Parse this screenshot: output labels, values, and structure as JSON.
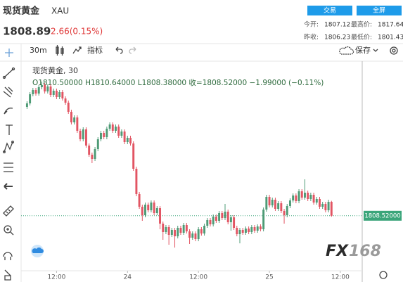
{
  "header": {
    "name": "现货黄金",
    "symbol": "XAU",
    "price": "1808.89",
    "change": "2.66(0.15%)",
    "buttons": [
      "交易",
      "全屏"
    ],
    "stats": [
      [
        "今开:",
        "1807.12",
        "最高价:",
        "1817.64"
      ],
      [
        "昨收:",
        "1806.23",
        "最低价:",
        "1801.43"
      ]
    ]
  },
  "toolbar": {
    "interval": "30m",
    "indicators": "指标",
    "save": "保存"
  },
  "chart_data": {
    "type": "candlestick",
    "title": "现货黄金, 30",
    "ohlc_text": "O1810.50000 H1810.64000 L1808.38000 收=1808.52000 −1.99000 (−0.11%)",
    "up_color": "#4e9b76",
    "down_color": "#e25563",
    "grid": false,
    "x": [
      7,
      7.5,
      8,
      8.5,
      9,
      9.5,
      10,
      10.5,
      11,
      11.5,
      12,
      12.5,
      13,
      13.5,
      14,
      14.5,
      15,
      15.5,
      16,
      16.5,
      17,
      17.5,
      18,
      18.5,
      19,
      19.5,
      20,
      20.5,
      21,
      21.5,
      22,
      22.5,
      23,
      23.5,
      24,
      24.5,
      25,
      25.5,
      26,
      26.5,
      27,
      27.5,
      28,
      28.5,
      29,
      29.5,
      30,
      30.5,
      31,
      31.5,
      32,
      32.5,
      33,
      33.5,
      34,
      34.5,
      35,
      35.5,
      36,
      36.5,
      37,
      37.5,
      38,
      38.5,
      39,
      39.5,
      40,
      40.5,
      41,
      41.5,
      42,
      42.5,
      43,
      43.5,
      44,
      44.5,
      45,
      45.5,
      46,
      46.5,
      47,
      47.5,
      48,
      48.5,
      49,
      49.5,
      50,
      50.5,
      51,
      51.5,
      52,
      52.5,
      53,
      53.5,
      54,
      54.5,
      55,
      55.5,
      56,
      56.5,
      57,
      57.5,
      58,
      58.5
    ],
    "open": [
      1824.0,
      1824.5,
      1825.8,
      1826.4,
      1825.9,
      1826.8,
      1827.1,
      1826.2,
      1826.9,
      1825.7,
      1826.3,
      1825.4,
      1826.1,
      1825.2,
      1824.6,
      1823.3,
      1821.8,
      1822.5,
      1820.6,
      1819.4,
      1820.8,
      1818.5,
      1817.2,
      1816.6,
      1818.0,
      1819.4,
      1820.3,
      1819.7,
      1820.9,
      1821.5,
      1820.6,
      1821.2,
      1819.9,
      1820.5,
      1819.0,
      1819.6,
      1818.8,
      1815.2,
      1811.6,
      1809.8,
      1808.6,
      1810.1,
      1809.3,
      1810.4,
      1808.9,
      1809.6,
      1807.4,
      1806.2,
      1806.9,
      1805.8,
      1806.5,
      1805.6,
      1806.8,
      1806.1,
      1807.2,
      1806.3,
      1805.4,
      1806.0,
      1805.2,
      1806.6,
      1806.0,
      1807.1,
      1807.9,
      1807.3,
      1808.4,
      1807.8,
      1808.9,
      1808.2,
      1809.1,
      1807.6,
      1808.3,
      1806.8,
      1805.9,
      1806.5,
      1806.1,
      1806.7,
      1806.2,
      1806.9,
      1806.4,
      1807.0,
      1806.6,
      1809.4,
      1811.2,
      1810.0,
      1810.8,
      1809.5,
      1810.3,
      1809.2,
      1808.6,
      1809.9,
      1810.7,
      1811.4,
      1810.6,
      1812.0,
      1811.1,
      1811.8,
      1810.9,
      1811.5,
      1810.4,
      1810.9,
      1809.8,
      1810.2,
      1809.3,
      1810.5
    ],
    "high": [
      1824.8,
      1826.1,
      1826.7,
      1826.7,
      1827.1,
      1827.6,
      1827.4,
      1827.2,
      1827.2,
      1826.6,
      1826.6,
      1826.4,
      1826.4,
      1825.5,
      1824.9,
      1823.6,
      1822.8,
      1822.8,
      1820.9,
      1821.1,
      1821.1,
      1818.8,
      1817.5,
      1818.3,
      1819.7,
      1820.6,
      1820.6,
      1821.2,
      1821.8,
      1821.8,
      1821.5,
      1821.5,
      1820.8,
      1820.8,
      1819.9,
      1819.9,
      1819.1,
      1815.5,
      1811.9,
      1810.1,
      1810.4,
      1810.4,
      1810.7,
      1810.7,
      1809.9,
      1809.9,
      1807.7,
      1807.2,
      1807.2,
      1806.8,
      1806.8,
      1807.1,
      1807.1,
      1807.5,
      1807.5,
      1806.6,
      1806.3,
      1806.3,
      1806.9,
      1806.9,
      1807.4,
      1808.2,
      1808.2,
      1808.7,
      1808.7,
      1809.2,
      1809.2,
      1810.2,
      1809.4,
      1808.6,
      1808.6,
      1807.1,
      1806.8,
      1806.8,
      1807.0,
      1807.0,
      1807.2,
      1807.2,
      1807.3,
      1807.3,
      1809.7,
      1811.5,
      1811.5,
      1811.1,
      1811.1,
      1810.6,
      1810.6,
      1809.5,
      1810.2,
      1811.0,
      1811.7,
      1811.7,
      1812.3,
      1812.3,
      1813.7,
      1812.1,
      1811.8,
      1811.8,
      1811.2,
      1811.2,
      1810.5,
      1810.5,
      1810.8,
      1810.64
    ],
    "low": [
      1823.7,
      1824.2,
      1825.5,
      1825.6,
      1825.6,
      1826.5,
      1825.9,
      1825.9,
      1825.4,
      1825.4,
      1825.1,
      1825.1,
      1824.9,
      1824.3,
      1823.0,
      1821.5,
      1821.5,
      1820.3,
      1819.1,
      1819.1,
      1818.2,
      1816.9,
      1816.0,
      1816.3,
      1817.7,
      1819.1,
      1819.4,
      1819.4,
      1820.6,
      1820.3,
      1820.3,
      1819.6,
      1819.6,
      1818.7,
      1818.7,
      1818.5,
      1814.9,
      1811.3,
      1809.5,
      1807.8,
      1808.3,
      1809.0,
      1809.0,
      1808.6,
      1808.6,
      1806.6,
      1805.1,
      1805.9,
      1804.4,
      1805.5,
      1804.0,
      1805.3,
      1805.8,
      1805.8,
      1806.0,
      1804.5,
      1805.1,
      1804.9,
      1804.9,
      1805.7,
      1805.7,
      1806.8,
      1807.0,
      1807.0,
      1807.5,
      1807.5,
      1807.9,
      1807.9,
      1807.3,
      1806.4,
      1806.5,
      1805.6,
      1804.6,
      1805.8,
      1805.8,
      1805.9,
      1805.9,
      1806.1,
      1806.1,
      1806.3,
      1806.3,
      1809.1,
      1809.7,
      1809.7,
      1809.2,
      1809.2,
      1808.9,
      1807.4,
      1808.3,
      1809.6,
      1810.4,
      1810.3,
      1810.3,
      1810.8,
      1810.8,
      1810.6,
      1810.6,
      1810.1,
      1810.1,
      1809.5,
      1809.5,
      1809.0,
      1809.0,
      1808.38
    ],
    "close": [
      1824.5,
      1825.8,
      1826.4,
      1825.9,
      1826.8,
      1827.1,
      1826.2,
      1826.9,
      1825.7,
      1826.3,
      1825.4,
      1826.1,
      1825.2,
      1824.6,
      1823.3,
      1821.8,
      1822.5,
      1820.6,
      1819.4,
      1820.8,
      1818.5,
      1817.2,
      1816.6,
      1818.0,
      1819.4,
      1820.3,
      1819.7,
      1820.9,
      1821.5,
      1820.6,
      1821.2,
      1819.9,
      1820.5,
      1819.0,
      1819.6,
      1818.8,
      1815.2,
      1811.6,
      1809.8,
      1808.6,
      1810.1,
      1809.3,
      1810.4,
      1808.9,
      1809.6,
      1807.4,
      1806.2,
      1806.9,
      1805.8,
      1806.5,
      1805.6,
      1806.8,
      1806.1,
      1807.2,
      1806.3,
      1805.4,
      1806.0,
      1805.2,
      1806.6,
      1806.0,
      1807.1,
      1807.9,
      1807.3,
      1808.4,
      1807.8,
      1808.9,
      1808.2,
      1809.1,
      1807.6,
      1808.3,
      1806.8,
      1805.9,
      1806.5,
      1806.1,
      1806.7,
      1806.2,
      1806.9,
      1806.4,
      1807.0,
      1806.6,
      1809.4,
      1811.2,
      1810.0,
      1810.8,
      1809.5,
      1810.3,
      1809.2,
      1808.6,
      1809.9,
      1810.7,
      1811.4,
      1810.6,
      1812.0,
      1811.1,
      1811.8,
      1810.9,
      1811.5,
      1810.4,
      1810.9,
      1809.8,
      1810.2,
      1809.3,
      1810.5,
      1808.52
    ],
    "xlim": [
      6,
      63.7
    ],
    "ylim": [
      1800,
      1830
    ],
    "xticks": [
      {
        "value": 12,
        "label": "12:00"
      },
      24,
      {
        "value": 36,
        "label": "12:00"
      },
      {
        "value": 48,
        "label": "25"
      },
      {
        "value": 60,
        "label": "12:00"
      }
    ],
    "price_line": {
      "value": 1808.52,
      "label": "1808.52000",
      "color": "#3aa57a"
    }
  }
}
